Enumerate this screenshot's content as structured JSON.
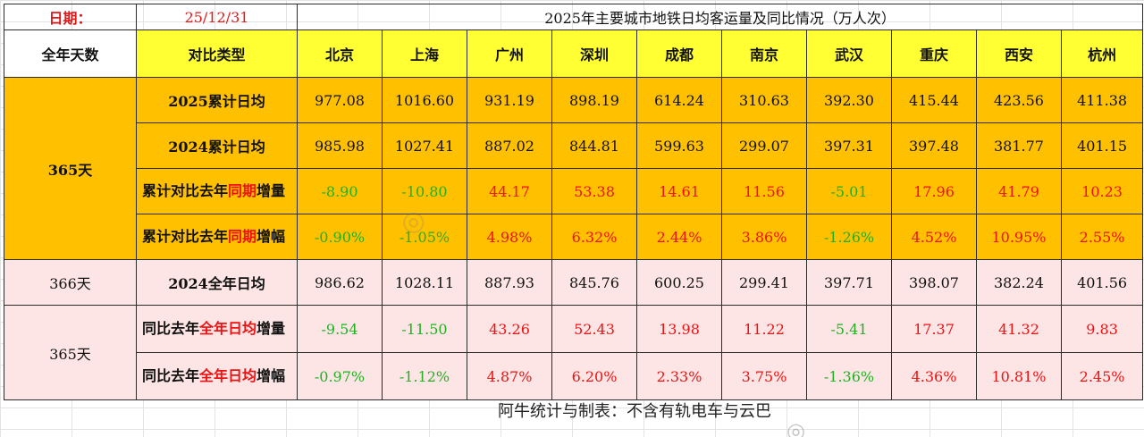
{
  "header": {
    "date_label": "日期：",
    "date_value": "25/12/31",
    "title": "2025年主要城市地铁日均客运量及同比情况（万人次）"
  },
  "columns": {
    "days_header": "全年天数",
    "type_header": "对比类型",
    "cities": [
      "北京",
      "上海",
      "广州",
      "深圳",
      "成都",
      "南京",
      "武汉",
      "重庆",
      "西安",
      "杭州"
    ]
  },
  "rows": [
    {
      "label": "2025累计日均",
      "values": [
        "977.08",
        "1016.60",
        "931.19",
        "898.19",
        "614.24",
        "310.63",
        "392.30",
        "415.44",
        "423.56",
        "411.38"
      ]
    },
    {
      "label": "2024累计日均",
      "values": [
        "985.98",
        "1027.41",
        "887.02",
        "844.81",
        "599.63",
        "299.07",
        "397.31",
        "397.48",
        "381.77",
        "401.15"
      ]
    },
    {
      "label_parts": [
        "累计对比去年",
        "同期",
        "增量"
      ],
      "values": [
        "-8.90",
        "-10.80",
        "44.17",
        "53.38",
        "14.61",
        "11.56",
        "-5.01",
        "17.96",
        "41.79",
        "10.23"
      ]
    },
    {
      "label_parts": [
        "累计对比去年",
        "同期",
        "增幅"
      ],
      "values": [
        "-0.90%",
        "-1.05%",
        "4.98%",
        "6.32%",
        "2.44%",
        "3.86%",
        "-1.26%",
        "4.52%",
        "10.95%",
        "2.55%"
      ]
    },
    {
      "label": "2024全年日均",
      "values": [
        "986.62",
        "1028.11",
        "887.93",
        "845.76",
        "600.25",
        "299.41",
        "397.71",
        "398.07",
        "382.24",
        "401.56"
      ]
    },
    {
      "label_parts": [
        "同比去年",
        "全年日均",
        "增量"
      ],
      "values": [
        "-9.54",
        "-11.50",
        "43.26",
        "52.43",
        "13.98",
        "11.22",
        "-5.41",
        "17.37",
        "41.32",
        "9.83"
      ]
    },
    {
      "label_parts": [
        "同比去年",
        "全年日均",
        "增幅"
      ],
      "values": [
        "-0.97%",
        "-1.12%",
        "4.87%",
        "6.20%",
        "2.33%",
        "3.75%",
        "-1.36%",
        "4.36%",
        "10.81%",
        "2.45%"
      ]
    }
  ],
  "days_groups": {
    "group1": "365天",
    "group2": "366天",
    "group3": "365天"
  },
  "footnote": "阿牛统计与制表：不含有轨电车与云巴",
  "colors": {
    "positive": "#ee1111",
    "negative": "#22b022",
    "accent_red": "#e01818",
    "header_yellow": "#ffff33",
    "block_orange": "#ffc000",
    "block_pink": "#fde5e5"
  }
}
